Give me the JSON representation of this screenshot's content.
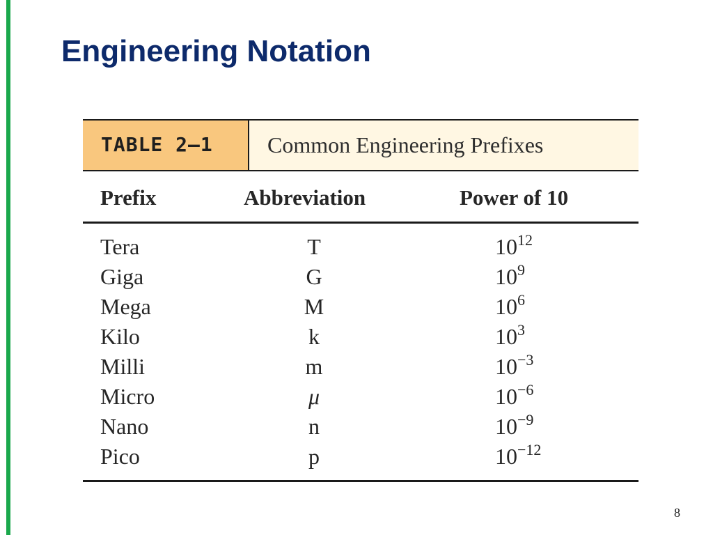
{
  "slide": {
    "title": "Engineering Notation",
    "page_number": "8",
    "colors": {
      "accent_bar": "#1aa84c",
      "title": "#0d2a6b",
      "caption_label_bg": "#f9c77e",
      "caption_title_bg": "#fff7e3"
    }
  },
  "table": {
    "caption_label": "TABLE 2–1",
    "caption_title": "Common Engineering Prefixes",
    "headers": {
      "prefix": "Prefix",
      "abbreviation": "Abbreviation",
      "power": "Power of 10"
    },
    "rows": [
      {
        "prefix": "Tera",
        "abbreviation": "T",
        "base": "10",
        "exponent": "12"
      },
      {
        "prefix": "Giga",
        "abbreviation": "G",
        "base": "10",
        "exponent": "9"
      },
      {
        "prefix": "Mega",
        "abbreviation": "M",
        "base": "10",
        "exponent": "6"
      },
      {
        "prefix": "Kilo",
        "abbreviation": "k",
        "base": "10",
        "exponent": "3"
      },
      {
        "prefix": "Milli",
        "abbreviation": "m",
        "base": "10",
        "exponent": "−3"
      },
      {
        "prefix": "Micro",
        "abbreviation": "μ",
        "base": "10",
        "exponent": "−6"
      },
      {
        "prefix": "Nano",
        "abbreviation": "n",
        "base": "10",
        "exponent": "−9"
      },
      {
        "prefix": "Pico",
        "abbreviation": "p",
        "base": "10",
        "exponent": "−12"
      }
    ]
  }
}
